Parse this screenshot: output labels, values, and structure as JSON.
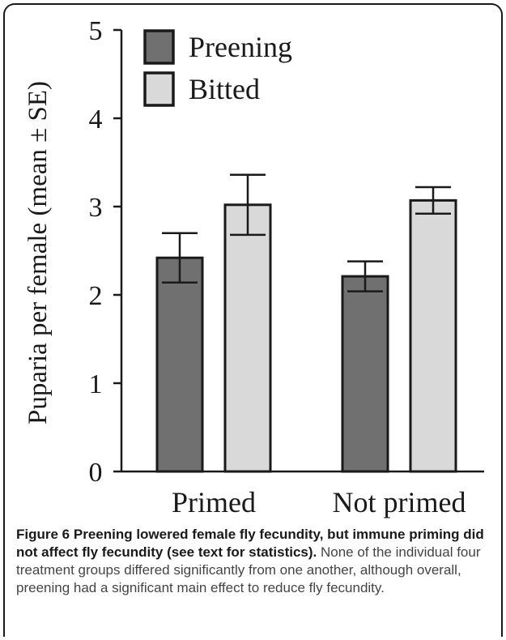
{
  "figure": {
    "number": "Figure 6",
    "title": "Preening lowered female fly fecundity, but immune priming did not affect fly fecundity (see text for statistics).",
    "description": "None of the individual four treatment groups differed significantly from one another, although overall, preening had a significant main effect to reduce fly fecundity."
  },
  "chart_data": {
    "type": "bar",
    "title": "",
    "xlabel": "",
    "ylabel": "Puparia per female (mean ± SE)",
    "ylim": [
      0,
      5
    ],
    "yticks": [
      0,
      1,
      2,
      3,
      4,
      5
    ],
    "categories": [
      "Primed",
      "Not primed"
    ],
    "legend_position": "top-left",
    "grid": false,
    "series": [
      {
        "name": "Preening",
        "color": "#707070",
        "values": [
          2.42,
          2.21
        ],
        "errors": [
          0.28,
          0.17
        ]
      },
      {
        "name": "Bitted",
        "color": "#d9d9d9",
        "values": [
          3.02,
          3.07
        ],
        "errors": [
          0.34,
          0.15
        ]
      }
    ]
  }
}
